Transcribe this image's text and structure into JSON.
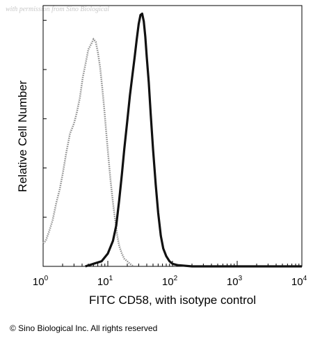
{
  "watermark": "with permission from Sino Biological",
  "copyright": "© Sino Biological Inc. All rights reserved",
  "colors": {
    "isotype": "#8c8c8c",
    "sample": "#111111",
    "axis": "#000000"
  },
  "chart_data": {
    "type": "line",
    "title": "",
    "xlabel": "FITC CD58, with isotype control",
    "ylabel": "Relative Cell Number",
    "xscale": "log",
    "xlim": [
      1,
      10000
    ],
    "ylim": [
      0,
      1
    ],
    "grid": false,
    "legend": "none",
    "x_ticks": [
      {
        "base": "10",
        "exp": "0"
      },
      {
        "base": "10",
        "exp": "1"
      },
      {
        "base": "10",
        "exp": "2"
      },
      {
        "base": "10",
        "exp": "3"
      },
      {
        "base": "10",
        "exp": "4"
      }
    ],
    "series": [
      {
        "style": "dotted-gray",
        "color": "#8c8c8c",
        "x": [
          1.0,
          1.1,
          1.25,
          1.4,
          1.6,
          1.8,
          2.0,
          2.3,
          2.6,
          3.0,
          3.3,
          3.7,
          4.1,
          4.5,
          5.0,
          5.5,
          6.0,
          6.5,
          7.0,
          7.6,
          8.2,
          8.8,
          9.5,
          10.2,
          11.0,
          12.0,
          13.0,
          14.0,
          15.0,
          16.5,
          18.0,
          20.0,
          22.0,
          25.0
        ],
        "y": [
          0.09,
          0.1,
          0.14,
          0.18,
          0.25,
          0.3,
          0.36,
          0.45,
          0.52,
          0.56,
          0.6,
          0.66,
          0.74,
          0.79,
          0.85,
          0.87,
          0.89,
          0.88,
          0.84,
          0.78,
          0.7,
          0.62,
          0.52,
          0.43,
          0.34,
          0.25,
          0.18,
          0.12,
          0.08,
          0.05,
          0.03,
          0.02,
          0.01,
          0.0
        ]
      },
      {
        "style": "solid-black",
        "color": "#111111",
        "x": [
          4.5,
          6.0,
          8.0,
          10.0,
          12.0,
          13.5,
          15.0,
          16.5,
          18.0,
          20.0,
          22.0,
          24.0,
          26.0,
          28.0,
          30.0,
          32.0,
          34.0,
          36.0,
          38.0,
          40.0,
          43.0,
          46.0,
          50.0,
          55.0,
          60.0,
          66.0,
          72.0,
          80.0,
          90.0,
          100.0,
          120.0,
          200.0,
          1000.0,
          10000.0
        ],
        "y": [
          0.0,
          0.01,
          0.02,
          0.05,
          0.1,
          0.16,
          0.26,
          0.36,
          0.46,
          0.57,
          0.67,
          0.75,
          0.82,
          0.89,
          0.95,
          0.985,
          0.99,
          0.96,
          0.9,
          0.82,
          0.72,
          0.6,
          0.46,
          0.32,
          0.21,
          0.12,
          0.07,
          0.04,
          0.02,
          0.01,
          0.005,
          0.0,
          0.0,
          0.0
        ]
      }
    ]
  }
}
